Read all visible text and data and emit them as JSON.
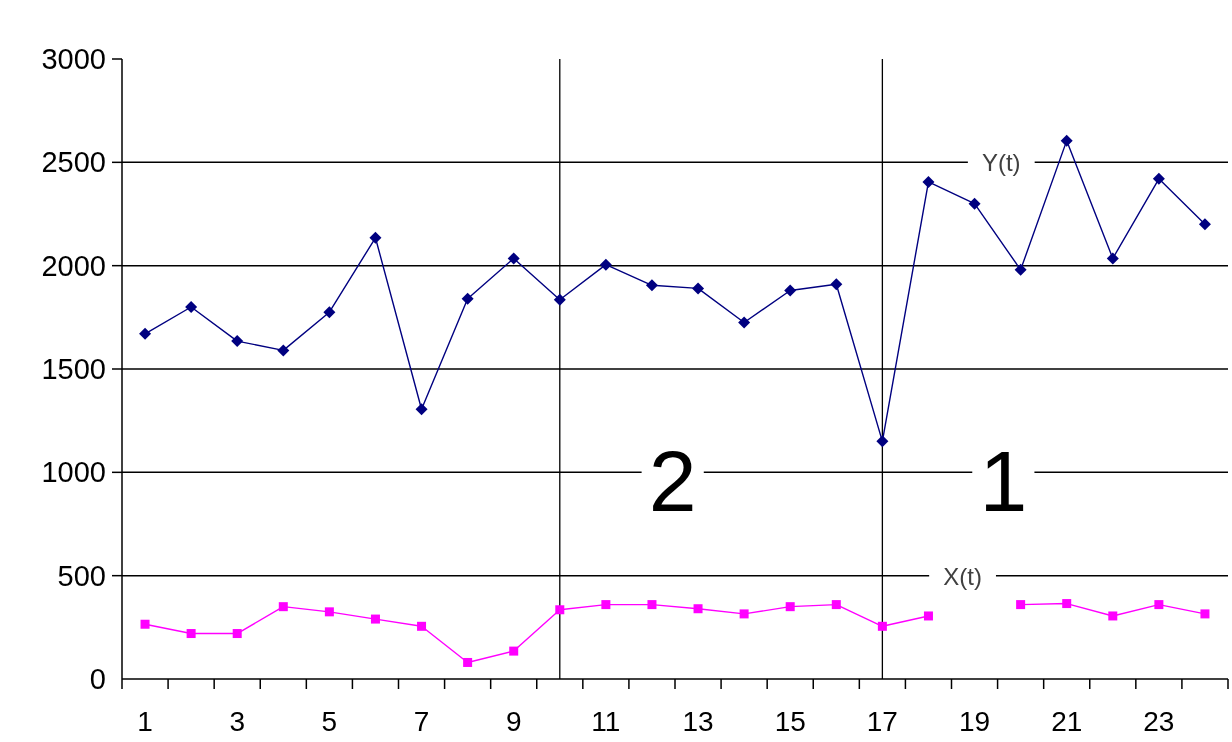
{
  "chart_data": {
    "type": "line",
    "x": [
      1,
      2,
      3,
      4,
      5,
      6,
      7,
      8,
      9,
      10,
      11,
      12,
      13,
      14,
      15,
      16,
      17,
      18,
      19,
      20,
      21,
      22,
      23,
      24
    ],
    "xlim": [
      0.5,
      24.5
    ],
    "xticks": [
      {
        "value": 0.5,
        "label": null
      },
      1,
      {
        "value": 1.5,
        "label": null
      },
      {
        "value": 2.5,
        "label": null
      },
      3,
      {
        "value": 3.5,
        "label": null
      },
      {
        "value": 4.5,
        "label": null
      },
      5,
      {
        "value": 5.5,
        "label": null
      },
      {
        "value": 6.5,
        "label": null
      },
      7,
      {
        "value": 7.5,
        "label": null
      },
      {
        "value": 8.5,
        "label": null
      },
      9,
      {
        "value": 9.5,
        "label": null
      },
      {
        "value": 10.5,
        "label": null
      },
      11,
      {
        "value": 11.5,
        "label": null
      },
      {
        "value": 12.5,
        "label": null
      },
      13,
      {
        "value": 13.5,
        "label": null
      },
      {
        "value": 14.5,
        "label": null
      },
      15,
      {
        "value": 15.5,
        "label": null
      },
      {
        "value": 16.5,
        "label": null
      },
      17,
      {
        "value": 17.5,
        "label": null
      },
      {
        "value": 18.5,
        "label": null
      },
      19,
      {
        "value": 19.5,
        "label": null
      },
      {
        "value": 20.5,
        "label": null
      },
      21,
      {
        "value": 21.5,
        "label": null
      },
      {
        "value": 22.5,
        "label": null
      },
      23,
      {
        "value": 23.5,
        "label": null
      },
      {
        "value": 24.5,
        "label": null
      }
    ],
    "ylim": [
      0,
      3000
    ],
    "yticks": [
      0,
      500,
      1000,
      1500,
      2000,
      2500,
      3000
    ],
    "grid": "y",
    "series": [
      {
        "name": "Y(t)",
        "color": "#000080",
        "marker": "diamond",
        "values": [
          1670,
          1800,
          1635,
          1590,
          1775,
          2135,
          1305,
          1840,
          2035,
          1835,
          2005,
          1905,
          1890,
          1725,
          1880,
          1910,
          1150,
          2405,
          2300,
          1980,
          2605,
          2035,
          2420,
          2200
        ]
      },
      {
        "name": "X(t)",
        "color": "#ff00ff",
        "marker": "square",
        "values": [
          265,
          220,
          220,
          350,
          325,
          290,
          255,
          80,
          135,
          335,
          360,
          360,
          340,
          315,
          350,
          360,
          255,
          305,
          null,
          360,
          365,
          305,
          360,
          315
        ]
      }
    ],
    "ref_lines": [
      {
        "axis": "x",
        "value": 10,
        "color": "#000000"
      },
      {
        "axis": "x",
        "value": 17,
        "color": "#000000"
      }
    ],
    "annotations": [
      "2",
      "1"
    ]
  }
}
